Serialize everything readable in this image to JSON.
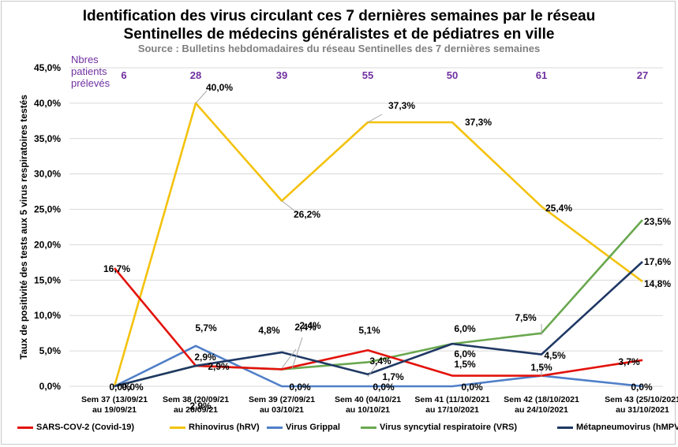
{
  "chart_data": {
    "type": "line",
    "title": "Identification des virus circulant ces 7 dernières semaines par le réseau",
    "title_line2": "Sentinelles de médecins généralistes et de pédiatres en ville",
    "subtitle": "Source : Bulletins hebdomadaires du réseau Sentinelles des 7 dernières semaines",
    "ylabel": "Taux de positivité des tests aux 5 virus respiratoires testés",
    "xlabel": "",
    "ylim": [
      0,
      45
    ],
    "y_ticks": [
      "0,0%",
      "5,0%",
      "10,0%",
      "15,0%",
      "20,0%",
      "25,0%",
      "30,0%",
      "35,0%",
      "40,0%",
      "45,0%"
    ],
    "grid": true,
    "legend_position": "bottom",
    "categories": [
      [
        "Sem 37 (13/09/21",
        "au 19/09/21"
      ],
      [
        "Sem 38 (20/09/21",
        "au 26/09/21"
      ],
      [
        "Sem 39 (27/09/21",
        "au 03/10/21"
      ],
      [
        "Sem 40 (04/10/21",
        "au 10/10/21"
      ],
      [
        "Sem 41 (11/10/2021",
        "au 17/10/2021"
      ],
      [
        "Sem 42 (18/10/2021",
        "au 24/10/2021"
      ],
      [
        "Sem 43 (25/10/2021",
        "au 31/10/2021"
      ]
    ],
    "patients_label": [
      "Nbres",
      "patients",
      "prélevés"
    ],
    "patients": [
      "6",
      "28",
      "39",
      "55",
      "50",
      "61",
      "27"
    ],
    "patients_color": "#7030a0",
    "series": [
      {
        "name": "SARS-COV-2 (Covid-19)",
        "color": "#e3120b",
        "values": [
          16.7,
          2.9,
          2.4,
          5.1,
          1.5,
          1.5,
          3.7
        ],
        "labels": [
          "16,7%",
          "2,9%",
          "2,4%",
          "5,1%",
          "1,5%",
          "1,5%",
          "3,7%"
        ]
      },
      {
        "name": "Rhinovirus (hRV)",
        "color": "#f4c20d",
        "values": [
          0.0,
          40.0,
          26.2,
          37.3,
          37.3,
          25.4,
          14.8
        ],
        "labels": [
          "0,0%",
          "40,0%",
          "26,2%",
          "37,3%",
          "37,3%",
          "25,4%",
          "14,8%"
        ]
      },
      {
        "name": "Virus Grippal",
        "color": "#4f7fc8",
        "values": [
          0.0,
          5.7,
          0.0,
          0.0,
          0.0,
          1.5,
          0.0
        ],
        "labels": [
          "0,0%",
          "5,7%",
          "0,0%",
          "0,0%",
          "0,0%",
          "",
          "0,0%"
        ]
      },
      {
        "name": "Virus syncytial respiratoire (VRS)",
        "color": "#6aa84f",
        "values": [
          0.0,
          2.9,
          2.4,
          3.4,
          6.0,
          7.5,
          23.5
        ],
        "labels": [
          "",
          "2,9%",
          "2,4%",
          "3,4%",
          "6,0%",
          "7,5%",
          "23,5%"
        ]
      },
      {
        "name": "Métapneumovirus (hMPV)",
        "color": "#1f3864",
        "values": [
          0.0,
          2.9,
          4.8,
          1.7,
          6.0,
          4.5,
          17.6
        ],
        "labels": [
          "",
          "2,9%",
          "4,8%",
          "1,7%",
          "6,0%",
          "4,5%",
          "17,6%"
        ]
      }
    ]
  }
}
